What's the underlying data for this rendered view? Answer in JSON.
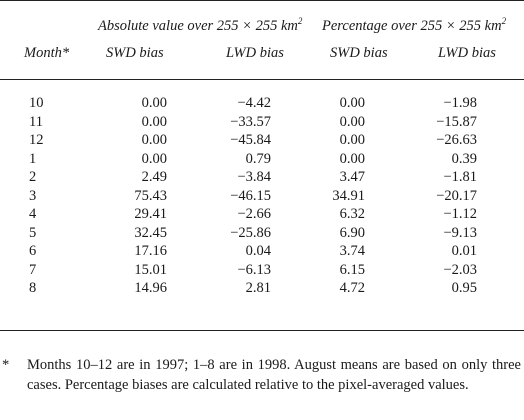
{
  "headers": {
    "group_absolute": "Absolute value over 255 × 255 km",
    "group_percentage": "Percentage over 255 × 255 km",
    "superscript": "2",
    "month": "Month*",
    "swd_bias_1": "SWD bias",
    "lwd_bias_1": "LWD bias",
    "swd_bias_2": "SWD bias",
    "lwd_bias_2": "LWD bias"
  },
  "rows": [
    {
      "month": "10",
      "abs_swd": "0.00",
      "abs_lwd": "−4.42",
      "pct_swd": "0.00",
      "pct_lwd": "−1.98"
    },
    {
      "month": "11",
      "abs_swd": "0.00",
      "abs_lwd": "−33.57",
      "pct_swd": "0.00",
      "pct_lwd": "−15.87"
    },
    {
      "month": "12",
      "abs_swd": "0.00",
      "abs_lwd": "−45.84",
      "pct_swd": "0.00",
      "pct_lwd": "−26.63"
    },
    {
      "month": "1",
      "abs_swd": "0.00",
      "abs_lwd": "0.79",
      "pct_swd": "0.00",
      "pct_lwd": "0.39"
    },
    {
      "month": "2",
      "abs_swd": "2.49",
      "abs_lwd": "−3.84",
      "pct_swd": "3.47",
      "pct_lwd": "−1.81"
    },
    {
      "month": "3",
      "abs_swd": "75.43",
      "abs_lwd": "−46.15",
      "pct_swd": "34.91",
      "pct_lwd": "−20.17"
    },
    {
      "month": "4",
      "abs_swd": "29.41",
      "abs_lwd": "−2.66",
      "pct_swd": "6.32",
      "pct_lwd": "−1.12"
    },
    {
      "month": "5",
      "abs_swd": "32.45",
      "abs_lwd": "−25.86",
      "pct_swd": "6.90",
      "pct_lwd": "−9.13"
    },
    {
      "month": "6",
      "abs_swd": "17.16",
      "abs_lwd": "0.04",
      "pct_swd": "3.74",
      "pct_lwd": "0.01"
    },
    {
      "month": "7",
      "abs_swd": "15.01",
      "abs_lwd": "−6.13",
      "pct_swd": "6.15",
      "pct_lwd": "−2.03"
    },
    {
      "month": "8",
      "abs_swd": "14.96",
      "abs_lwd": "2.81",
      "pct_swd": "4.72",
      "pct_lwd": "0.95"
    }
  ],
  "footnote": {
    "marker": "*",
    "text": "Months 10–12 are in 1997; 1–8 are in 1998. August means are based on only three cases. Percentage biases are calculated relative to the pixel-averaged values."
  }
}
